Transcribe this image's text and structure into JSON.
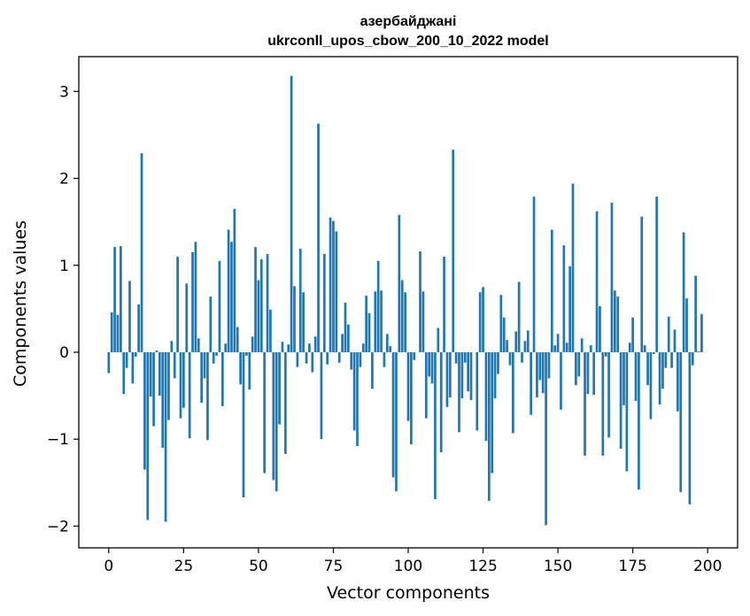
{
  "chart_data": {
    "type": "bar",
    "title_line1": "азербайджані",
    "title_line2": "ukrconll_upos_cbow_200_10_2022 model",
    "xlabel": "Vector components",
    "ylabel": "Components values",
    "xlim": [
      -10,
      210
    ],
    "ylim": [
      -2.25,
      3.4
    ],
    "x_ticks": [
      0,
      25,
      50,
      75,
      100,
      125,
      150,
      175,
      200
    ],
    "x_tick_labels": [
      "0",
      "25",
      "50",
      "75",
      "100",
      "125",
      "150",
      "175",
      "200"
    ],
    "y_ticks": [
      -2,
      -1,
      0,
      1,
      2,
      3
    ],
    "y_tick_labels": [
      "−2",
      "−1",
      "0",
      "1",
      "2",
      "3"
    ],
    "bar_color": "#1f77b4",
    "grid": false,
    "values": [
      -0.24,
      0.46,
      1.21,
      0.43,
      1.22,
      -0.48,
      -0.18,
      0.82,
      -0.36,
      -0.05,
      0.55,
      2.29,
      -1.35,
      -1.93,
      -0.51,
      -0.85,
      0.02,
      -0.5,
      -1.1,
      -1.95,
      -0.78,
      0.13,
      -0.3,
      1.1,
      -0.76,
      -0.64,
      0.79,
      -0.99,
      1.15,
      1.27,
      0.16,
      -0.58,
      -0.3,
      -1.01,
      0.64,
      -0.13,
      -0.04,
      1.05,
      -0.62,
      0.1,
      1.41,
      1.27,
      1.65,
      0.29,
      -0.37,
      -1.67,
      -0.04,
      -0.43,
      0.18,
      1.21,
      0.83,
      1.07,
      -1.39,
      1.13,
      0.49,
      -1.47,
      -1.6,
      -0.83,
      0.12,
      -1.17,
      0.09,
      3.18,
      0.76,
      -0.17,
      1.19,
      0.69,
      -0.13,
      0.1,
      -0.23,
      0.18,
      2.63,
      -1.0,
      1.13,
      -0.14,
      1.55,
      1.51,
      1.39,
      -0.12,
      0.21,
      0.57,
      0.32,
      -0.2,
      -0.9,
      -1.08,
      -0.17,
      0.1,
      0.65,
      0.45,
      -0.42,
      0.7,
      1.05,
      0.71,
      -0.17,
      0.21,
      0.07,
      -1.44,
      -1.6,
      1.58,
      0.83,
      0.69,
      -0.79,
      -1.06,
      -0.09,
      0.0,
      1.16,
      0.7,
      -0.76,
      -0.28,
      -0.36,
      -1.69,
      0.28,
      -1.15,
      1.1,
      -0.63,
      -0.52,
      2.33,
      -0.13,
      -0.92,
      -0.53,
      -0.12,
      -0.45,
      -0.55,
      0.0,
      -0.9,
      0.69,
      0.75,
      -1.02,
      -1.71,
      -1.39,
      -0.53,
      -0.25,
      0.66,
      0.4,
      0.14,
      -0.15,
      -0.93,
      0.24,
      0.81,
      -0.12,
      0.13,
      0.25,
      -0.72,
      1.79,
      -0.52,
      -0.32,
      -0.47,
      -1.99,
      -0.3,
      1.41,
      0.08,
      0.21,
      -0.66,
      1.23,
      0.11,
      0.99,
      1.94,
      -0.38,
      -0.28,
      0.16,
      -1.19,
      -0.48,
      0.08,
      -0.49,
      1.62,
      0.53,
      -1.19,
      -0.05,
      -0.98,
      1.72,
      0.71,
      0.64,
      -1.11,
      -0.61,
      -1.37,
      0.11,
      0.4,
      -0.56,
      -1.58,
      1.56,
      0.08,
      -0.38,
      -0.77,
      -0.02,
      1.79,
      -0.6,
      -0.42,
      -0.18,
      0.41,
      -0.18,
      0.26,
      -0.68,
      -1.61,
      1.38,
      0.62,
      -1.75,
      -0.15,
      0.88,
      0.01,
      0.44,
      0.0
    ]
  }
}
